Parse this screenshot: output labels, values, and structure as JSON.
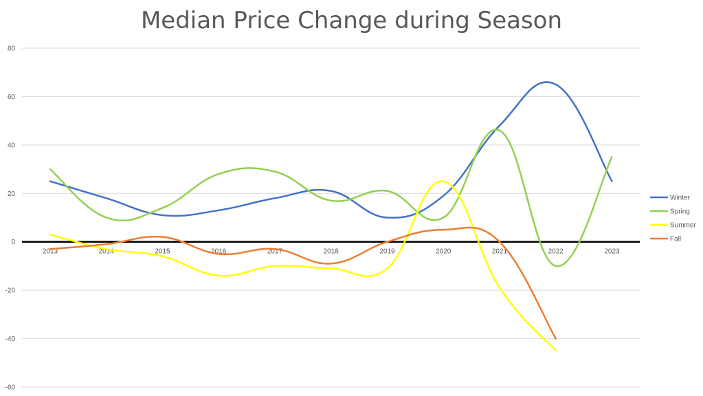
{
  "chart_data": {
    "type": "line",
    "title": "Median Price Change during Season",
    "xlabel": "",
    "ylabel": "",
    "categories": [
      "2013",
      "2014",
      "2015",
      "2016",
      "2017",
      "2018",
      "2019",
      "2020",
      "2021",
      "2022",
      "2023"
    ],
    "ylim": [
      -60,
      80
    ],
    "yticks": [
      -60,
      -40,
      -20,
      0,
      20,
      40,
      60,
      80
    ],
    "grid": true,
    "legend_position": "right",
    "series": [
      {
        "name": "Winter",
        "color": "#4472C4",
        "values": [
          25,
          18,
          11,
          13,
          18,
          21,
          10,
          19,
          48,
          65,
          25
        ]
      },
      {
        "name": "Spring",
        "color": "#92D050",
        "values": [
          30,
          10,
          14,
          28,
          29,
          17,
          21,
          10,
          46,
          -10,
          35
        ]
      },
      {
        "name": "Summer",
        "color": "#FFFF00",
        "values": [
          3,
          -3,
          -6,
          -14,
          -10,
          -11,
          -11,
          25,
          -19,
          -45,
          null
        ]
      },
      {
        "name": "Fall",
        "color": "#ED7D31",
        "values": [
          -3,
          -1,
          2,
          -5,
          -3,
          -9,
          0,
          5,
          0,
          -40,
          null
        ]
      }
    ]
  }
}
